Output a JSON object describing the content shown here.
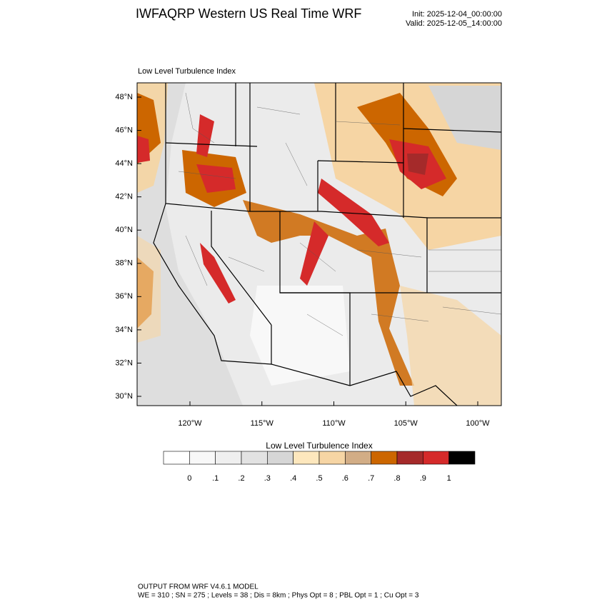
{
  "header": {
    "title": "IWFAQRP Western US Real Time WRF",
    "init": "Init: 2025-12-04_00:00:00",
    "valid": "Valid: 2025-12-05_14:00:00"
  },
  "map": {
    "subtitle": "Low Level Turbulence Index",
    "lat_labels": [
      "48°N",
      "46°N",
      "44°N",
      "42°N",
      "40°N",
      "38°N",
      "36°N",
      "34°N",
      "32°N",
      "30°N"
    ],
    "lon_labels": [
      "120°W",
      "115°W",
      "110°W",
      "105°W",
      "100°W"
    ]
  },
  "colorbar": {
    "title": "Low Level Turbulence Index",
    "colors": [
      "#ffffff",
      "#f8f8f8",
      "#efefef",
      "#e2e2e2",
      "#d6d6d6",
      "#fde7bd",
      "#f6d5a4",
      "#d2ad86",
      "#cc6600",
      "#a52a2a",
      "#d52a2a",
      "#000000"
    ],
    "labels": [
      "0",
      ".1",
      ".2",
      ".3",
      ".4",
      ".5",
      ".6",
      ".7",
      ".8",
      ".9",
      "1"
    ]
  },
  "footer": {
    "line1": "OUTPUT FROM WRF V4.6.1 MODEL",
    "line2": "WE = 310 ; SN = 275 ; Levels = 38 ; Dis = 8km ; Phys Opt = 8 ; PBL Opt = 1 ; Cu Opt = 3"
  }
}
